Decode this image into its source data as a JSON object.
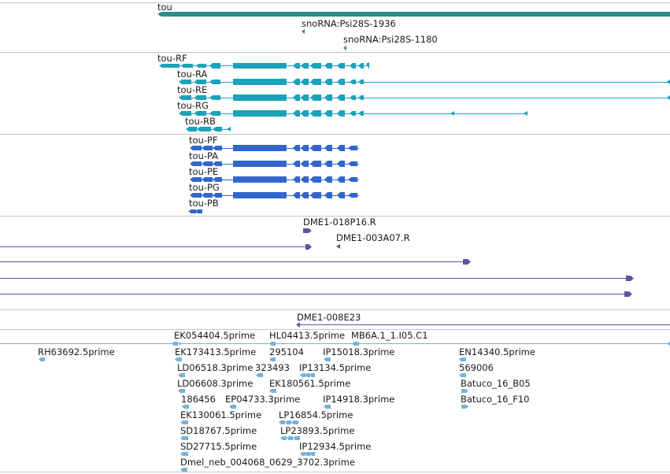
{
  "colors": {
    "gene": "#2e8b87",
    "transcript": "#1aa3bb",
    "protein": "#3366cc",
    "clone": "#6a4ea0",
    "est": "#74b4d8",
    "divider": "#c4c4c4"
  },
  "gene_track": {
    "gene_label": "tou",
    "snorna": [
      "snoRNA:Psi28S-1936",
      "snoRNA:Psi28S-1180"
    ]
  },
  "transcripts": [
    "tou-RF",
    "tou-RA",
    "tou-RE",
    "tou-RG",
    "tou-RB"
  ],
  "proteins": [
    "tou-PF",
    "tou-PA",
    "tou-PE",
    "tou-PG",
    "tou-PB"
  ],
  "clones": [
    "DME1-018P16.R",
    "DME1-003A07.R",
    "DME1-008E23"
  ],
  "ests": [
    "EK054404.5prime",
    "HL04413.5prime",
    "MB6A.1_1.I05.C1",
    "RH63692.5prime",
    "EK173413.5prime",
    "295104",
    "IP15018.3prime",
    "EN14340.5prime",
    "LD06518.3prime",
    "323493",
    "IP13134.5prime",
    "569006",
    "LD06608.3prime",
    "EK180561.5prime",
    "Batuco_16_B05",
    "186456",
    "EP04733.3prime",
    "IP14918.3prime",
    "Batuco_16_F10",
    "EK130061.5prime",
    "LP16854.5prime",
    "SD18767.5prime",
    "LP23893.5prime",
    "SD27715.5prime",
    "IP12934.5prime",
    "Dmel_neb_004068_0629_3702.3prime"
  ]
}
